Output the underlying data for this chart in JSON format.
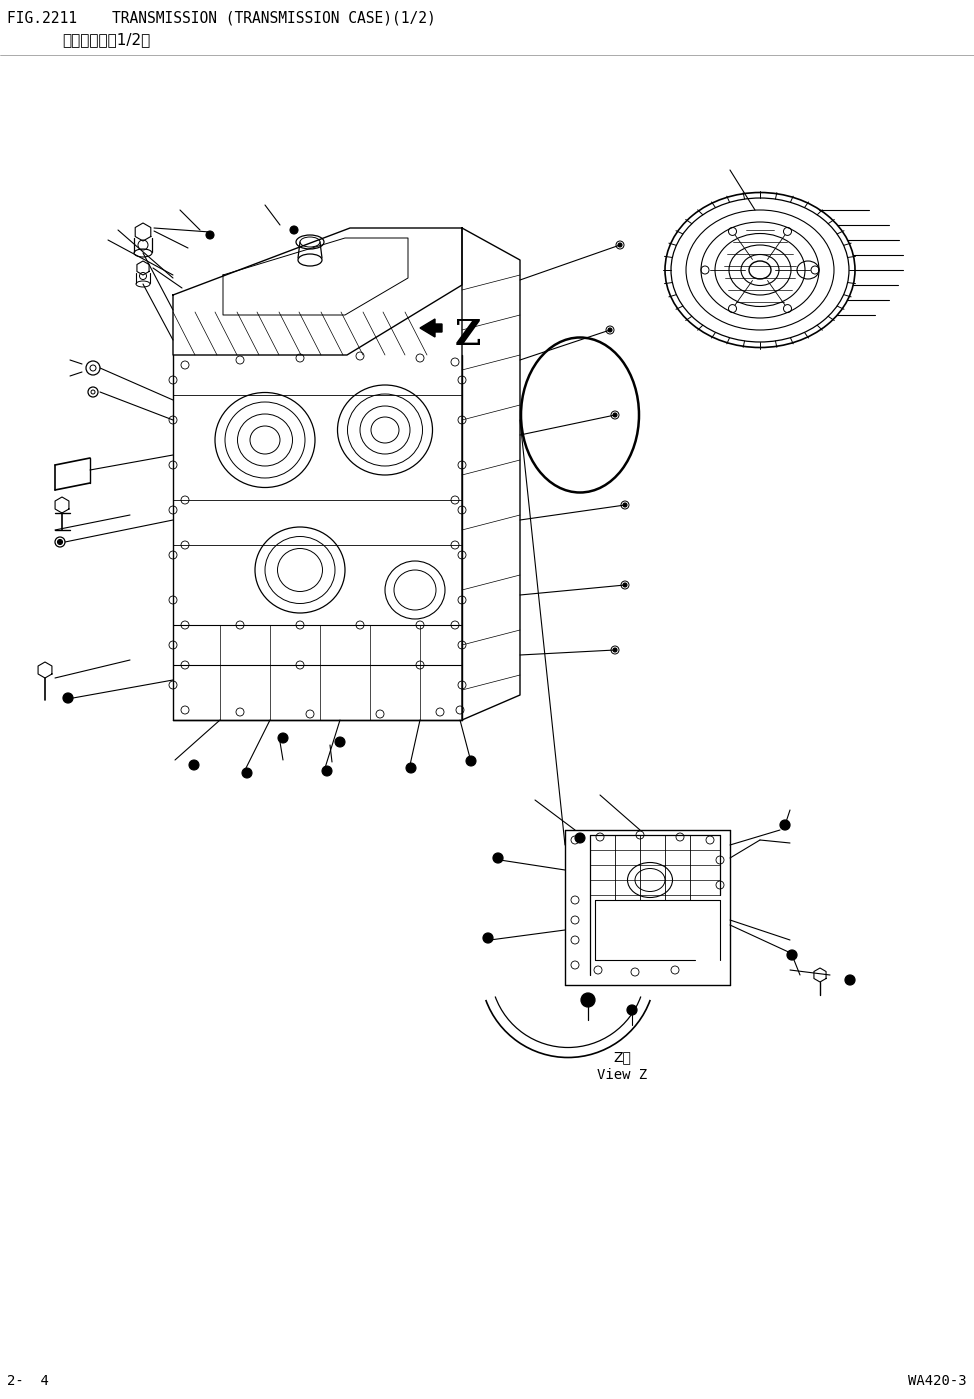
{
  "title_line1": "FIG.2211    TRANSMISSION (TRANSMISSION CASE)(1/2)",
  "title_line2": "変速笚全体（1/2）",
  "footer_left": "2-  4",
  "footer_right": "WA420-3",
  "bg_color": "#ffffff",
  "line_color": "#000000",
  "title_fontsize": 10.5,
  "subtitle_fontsize": 11,
  "footer_fontsize": 10,
  "fig_width": 9.74,
  "fig_height": 13.99,
  "viewz_label1": "Z視",
  "viewz_label2": "View Z"
}
